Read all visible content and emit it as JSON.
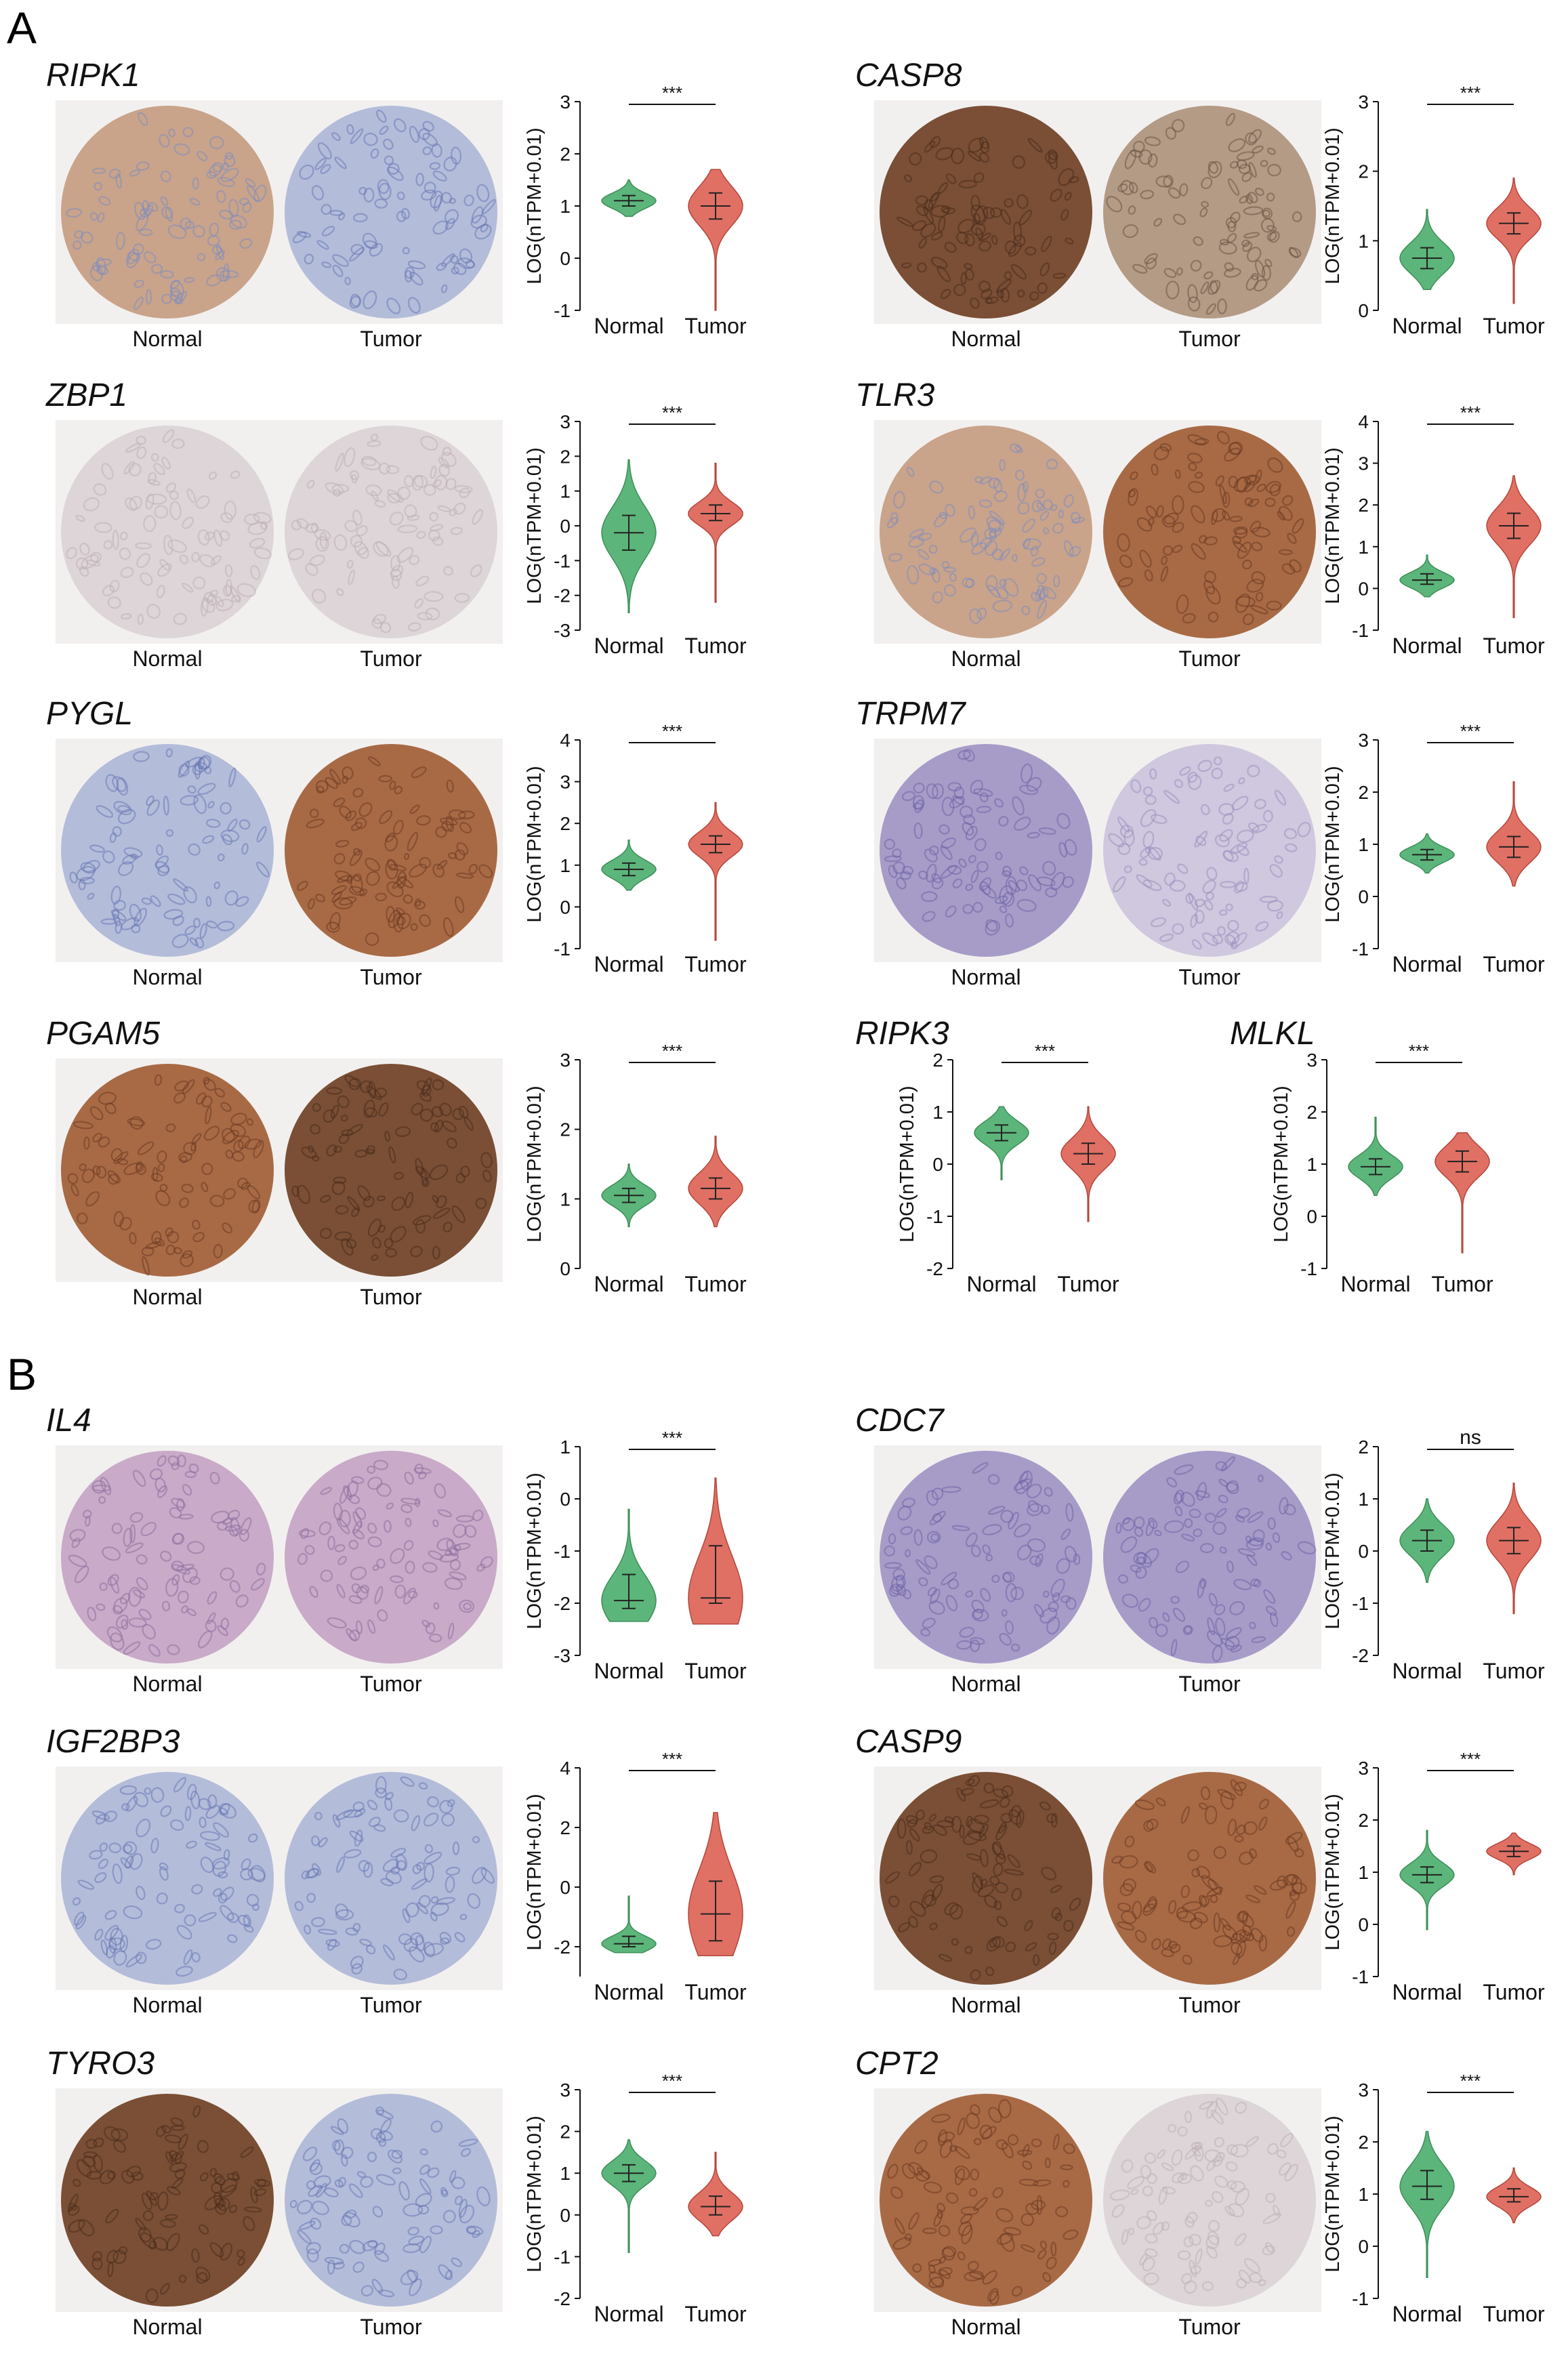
{
  "figure": {
    "sections": [
      {
        "id": "A",
        "label": "A"
      },
      {
        "id": "B",
        "label": "B"
      }
    ],
    "y_axis_label": "LOG(nTPM+0.01)",
    "group_labels": [
      "Normal",
      "Tumor"
    ],
    "colors": {
      "normal": "#5cb57a",
      "tumor": "#e07064"
    },
    "panels": [
      {
        "gene": "RIPK1",
        "section": "A",
        "has_images": true,
        "normal_stain": "light-brown",
        "tumor_stain": "blue",
        "significance": "***",
        "yticks": [
          3,
          2,
          1,
          0,
          -1
        ]
      },
      {
        "gene": "CASP8",
        "section": "A",
        "has_images": true,
        "normal_stain": "dark-brown",
        "tumor_stain": "brown-speckled",
        "significance": "***",
        "yticks": [
          3,
          2,
          1,
          0
        ]
      },
      {
        "gene": "ZBP1",
        "section": "A",
        "has_images": true,
        "normal_stain": "pale",
        "tumor_stain": "pale",
        "significance": "***",
        "yticks": [
          3,
          2,
          1,
          0,
          -1,
          -2,
          -3
        ]
      },
      {
        "gene": "TLR3",
        "section": "A",
        "has_images": true,
        "normal_stain": "light-brown",
        "tumor_stain": "brown",
        "significance": "***",
        "yticks": [
          4,
          3,
          2,
          1,
          0,
          -1
        ]
      },
      {
        "gene": "PYGL",
        "section": "A",
        "has_images": true,
        "normal_stain": "blue",
        "tumor_stain": "brown",
        "significance": "***",
        "yticks": [
          4,
          3,
          2,
          1,
          0,
          -1
        ]
      },
      {
        "gene": "TRPM7",
        "section": "A",
        "has_images": true,
        "normal_stain": "purple",
        "tumor_stain": "pale-purple",
        "significance": "***",
        "yticks": [
          3,
          2,
          1,
          0,
          -1
        ]
      },
      {
        "gene": "PGAM5",
        "section": "A",
        "has_images": true,
        "normal_stain": "brown",
        "tumor_stain": "dark-brown",
        "significance": "***",
        "yticks": [
          3,
          2,
          1,
          0
        ]
      },
      {
        "gene": "RIPK3",
        "section": "A",
        "has_images": false,
        "significance": "***",
        "yticks": [
          2,
          1,
          0,
          -1,
          -2
        ]
      },
      {
        "gene": "MLKL",
        "section": "A",
        "has_images": false,
        "significance": "***",
        "yticks": [
          3,
          2,
          1,
          0,
          -1
        ]
      },
      {
        "gene": "IL4",
        "section": "B",
        "has_images": true,
        "normal_stain": "pink-purple",
        "tumor_stain": "pink-purple",
        "significance": "***",
        "yticks": [
          1,
          0,
          -1,
          -2,
          -3
        ]
      },
      {
        "gene": "CDC7",
        "section": "B",
        "has_images": true,
        "normal_stain": "purple",
        "tumor_stain": "purple",
        "significance": "ns",
        "yticks": [
          2,
          1,
          0,
          -1,
          -2
        ]
      },
      {
        "gene": "IGF2BP3",
        "section": "B",
        "has_images": true,
        "normal_stain": "blue",
        "tumor_stain": "blue",
        "significance": "***",
        "yticks": [
          4,
          2,
          0,
          -2
        ]
      },
      {
        "gene": "CASP9",
        "section": "B",
        "has_images": true,
        "normal_stain": "dark-brown",
        "tumor_stain": "brown",
        "significance": "***",
        "yticks": [
          3,
          2,
          1,
          0,
          -1
        ]
      },
      {
        "gene": "TYRO3",
        "section": "B",
        "has_images": true,
        "normal_stain": "dark-brown",
        "tumor_stain": "blue",
        "significance": "***",
        "yticks": [
          3,
          2,
          1,
          0,
          -1,
          -2
        ]
      },
      {
        "gene": "CPT2",
        "section": "B",
        "has_images": true,
        "normal_stain": "brown",
        "tumor_stain": "pale",
        "significance": "***",
        "yticks": [
          3,
          2,
          1,
          0,
          -1
        ]
      }
    ]
  },
  "chart_data": [
    {
      "type": "violin",
      "gene": "RIPK1",
      "categories": [
        "Normal",
        "Tumor"
      ],
      "ylabel": "LOG(nTPM+0.01)",
      "ylim": [
        -1,
        3
      ],
      "series": [
        {
          "name": "Normal",
          "median": 1.1,
          "q1": 1.0,
          "q3": 1.2,
          "min": 0.8,
          "max": 1.5
        },
        {
          "name": "Tumor",
          "median": 1.0,
          "q1": 0.75,
          "q3": 1.25,
          "min": -1.0,
          "max": 1.7
        }
      ]
    },
    {
      "type": "violin",
      "gene": "CASP8",
      "categories": [
        "Normal",
        "Tumor"
      ],
      "ylabel": "LOG(nTPM+0.01)",
      "ylim": [
        0,
        3
      ],
      "series": [
        {
          "name": "Normal",
          "median": 0.75,
          "q1": 0.6,
          "q3": 0.9,
          "min": 0.3,
          "max": 1.45
        },
        {
          "name": "Tumor",
          "median": 1.25,
          "q1": 1.1,
          "q3": 1.4,
          "min": 0.1,
          "max": 1.9
        }
      ]
    },
    {
      "type": "violin",
      "gene": "ZBP1",
      "categories": [
        "Normal",
        "Tumor"
      ],
      "ylabel": "LOG(nTPM+0.01)",
      "ylim": [
        -3,
        3
      ],
      "series": [
        {
          "name": "Normal",
          "median": -0.2,
          "q1": -0.7,
          "q3": 0.3,
          "min": -2.5,
          "max": 1.9
        },
        {
          "name": "Tumor",
          "median": 0.35,
          "q1": 0.15,
          "q3": 0.6,
          "min": -2.2,
          "max": 1.8
        }
      ]
    },
    {
      "type": "violin",
      "gene": "TLR3",
      "categories": [
        "Normal",
        "Tumor"
      ],
      "ylabel": "LOG(nTPM+0.01)",
      "ylim": [
        -1,
        4
      ],
      "series": [
        {
          "name": "Normal",
          "median": 0.2,
          "q1": 0.1,
          "q3": 0.35,
          "min": -0.2,
          "max": 0.8
        },
        {
          "name": "Tumor",
          "median": 1.5,
          "q1": 1.2,
          "q3": 1.8,
          "min": -0.7,
          "max": 2.7
        }
      ]
    },
    {
      "type": "violin",
      "gene": "PYGL",
      "categories": [
        "Normal",
        "Tumor"
      ],
      "ylabel": "LOG(nTPM+0.01)",
      "ylim": [
        -1,
        4
      ],
      "series": [
        {
          "name": "Normal",
          "median": 0.9,
          "q1": 0.75,
          "q3": 1.05,
          "min": 0.4,
          "max": 1.6
        },
        {
          "name": "Tumor",
          "median": 1.5,
          "q1": 1.3,
          "q3": 1.7,
          "min": -0.8,
          "max": 2.5
        }
      ]
    },
    {
      "type": "violin",
      "gene": "TRPM7",
      "categories": [
        "Normal",
        "Tumor"
      ],
      "ylabel": "LOG(nTPM+0.01)",
      "ylim": [
        -1,
        3
      ],
      "series": [
        {
          "name": "Normal",
          "median": 0.8,
          "q1": 0.7,
          "q3": 0.9,
          "min": 0.45,
          "max": 1.2
        },
        {
          "name": "Tumor",
          "median": 0.95,
          "q1": 0.75,
          "q3": 1.15,
          "min": 0.2,
          "max": 2.2
        }
      ]
    },
    {
      "type": "violin",
      "gene": "PGAM5",
      "categories": [
        "Normal",
        "Tumor"
      ],
      "ylabel": "LOG(nTPM+0.01)",
      "ylim": [
        0,
        3
      ],
      "series": [
        {
          "name": "Normal",
          "median": 1.05,
          "q1": 0.95,
          "q3": 1.15,
          "min": 0.6,
          "max": 1.5
        },
        {
          "name": "Tumor",
          "median": 1.15,
          "q1": 1.0,
          "q3": 1.3,
          "min": 0.6,
          "max": 1.9
        }
      ]
    },
    {
      "type": "violin",
      "gene": "RIPK3",
      "categories": [
        "Normal",
        "Tumor"
      ],
      "ylabel": "LOG(nTPM+0.01)",
      "ylim": [
        -2,
        2
      ],
      "series": [
        {
          "name": "Normal",
          "median": 0.6,
          "q1": 0.45,
          "q3": 0.75,
          "min": -0.3,
          "max": 1.1
        },
        {
          "name": "Tumor",
          "median": 0.2,
          "q1": 0.0,
          "q3": 0.4,
          "min": -1.1,
          "max": 1.1
        }
      ]
    },
    {
      "type": "violin",
      "gene": "MLKL",
      "categories": [
        "Normal",
        "Tumor"
      ],
      "ylabel": "LOG(nTPM+0.01)",
      "ylim": [
        -1,
        3
      ],
      "series": [
        {
          "name": "Normal",
          "median": 0.95,
          "q1": 0.8,
          "q3": 1.1,
          "min": 0.4,
          "max": 1.9
        },
        {
          "name": "Tumor",
          "median": 1.05,
          "q1": 0.85,
          "q3": 1.25,
          "min": -0.7,
          "max": 1.6
        }
      ]
    },
    {
      "type": "violin",
      "gene": "IL4",
      "categories": [
        "Normal",
        "Tumor"
      ],
      "ylabel": "LOG(nTPM+0.01)",
      "ylim": [
        -3,
        1
      ],
      "series": [
        {
          "name": "Normal",
          "median": -1.95,
          "q1": -2.1,
          "q3": -1.45,
          "min": -2.35,
          "max": -0.2
        },
        {
          "name": "Tumor",
          "median": -1.9,
          "q1": -2.0,
          "q3": -0.9,
          "min": -2.4,
          "max": 0.4
        }
      ]
    },
    {
      "type": "violin",
      "gene": "CDC7",
      "categories": [
        "Normal",
        "Tumor"
      ],
      "ylabel": "LOG(nTPM+0.01)",
      "ylim": [
        -2,
        2
      ],
      "series": [
        {
          "name": "Normal",
          "median": 0.2,
          "q1": 0.0,
          "q3": 0.4,
          "min": -0.6,
          "max": 1.0
        },
        {
          "name": "Tumor",
          "median": 0.2,
          "q1": -0.05,
          "q3": 0.45,
          "min": -1.2,
          "max": 1.3
        }
      ]
    },
    {
      "type": "violin",
      "gene": "IGF2BP3",
      "categories": [
        "Normal",
        "Tumor"
      ],
      "ylabel": "LOG(nTPM+0.01)",
      "ylim": [
        -3,
        4
      ],
      "series": [
        {
          "name": "Normal",
          "median": -1.9,
          "q1": -2.0,
          "q3": -1.65,
          "min": -2.2,
          "max": -0.3
        },
        {
          "name": "Tumor",
          "median": -0.9,
          "q1": -1.8,
          "q3": 0.2,
          "min": -2.3,
          "max": 2.5
        }
      ]
    },
    {
      "type": "violin",
      "gene": "CASP9",
      "categories": [
        "Normal",
        "Tumor"
      ],
      "ylabel": "LOG(nTPM+0.01)",
      "ylim": [
        -1,
        3
      ],
      "series": [
        {
          "name": "Normal",
          "median": 0.95,
          "q1": 0.8,
          "q3": 1.1,
          "min": -0.1,
          "max": 1.8
        },
        {
          "name": "Tumor",
          "median": 1.4,
          "q1": 1.3,
          "q3": 1.5,
          "min": 0.95,
          "max": 1.75
        }
      ]
    },
    {
      "type": "violin",
      "gene": "TYRO3",
      "categories": [
        "Normal",
        "Tumor"
      ],
      "ylabel": "LOG(nTPM+0.01)",
      "ylim": [
        -2,
        3
      ],
      "series": [
        {
          "name": "Normal",
          "median": 1.0,
          "q1": 0.8,
          "q3": 1.2,
          "min": -0.9,
          "max": 1.8
        },
        {
          "name": "Tumor",
          "median": 0.2,
          "q1": 0.0,
          "q3": 0.45,
          "min": -0.5,
          "max": 1.5
        }
      ]
    },
    {
      "type": "violin",
      "gene": "CPT2",
      "categories": [
        "Normal",
        "Tumor"
      ],
      "ylabel": "LOG(nTPM+0.01)",
      "ylim": [
        -1,
        3
      ],
      "series": [
        {
          "name": "Normal",
          "median": 1.15,
          "q1": 0.9,
          "q3": 1.45,
          "min": -0.6,
          "max": 2.2
        },
        {
          "name": "Tumor",
          "median": 0.95,
          "q1": 0.85,
          "q3": 1.1,
          "min": 0.45,
          "max": 1.5
        }
      ]
    }
  ]
}
